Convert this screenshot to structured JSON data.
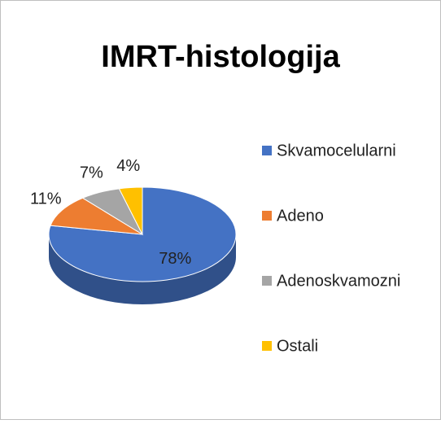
{
  "chart_data": {
    "type": "pie3d",
    "title": "IMRT-histologija",
    "categories": [
      "Skvamocelularni",
      "Adeno",
      "Adenoskvamozni",
      "Ostali"
    ],
    "values": [
      78,
      11,
      7,
      4
    ],
    "value_labels": [
      "78%",
      "11%",
      "7%",
      "4%"
    ],
    "colors": [
      "#4472c4",
      "#ed7d31",
      "#a5a5a5",
      "#ffc000"
    ],
    "legend": "right"
  }
}
